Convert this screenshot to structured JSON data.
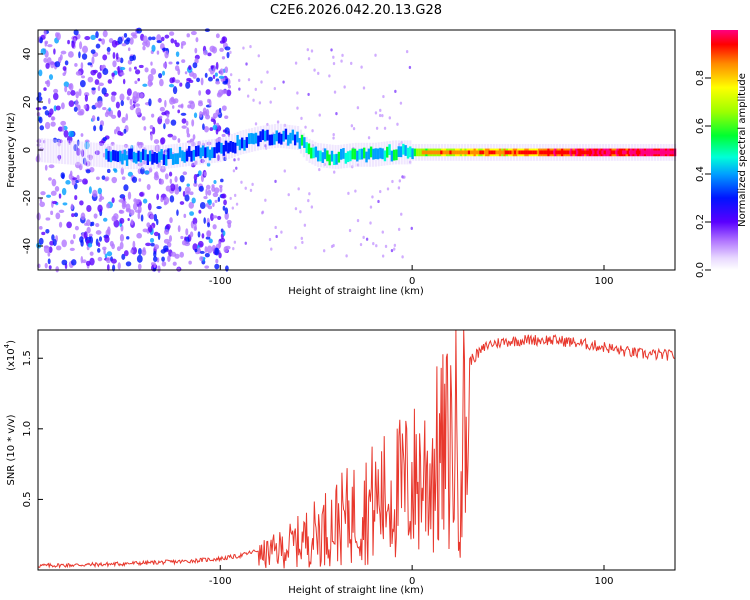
{
  "title": "C2E6.2026.042.20.13.G28",
  "chart_data": [
    {
      "type": "heatmap",
      "name": "spectrogram",
      "xlabel": "Height of straight line (km)",
      "ylabel": "Frequency (Hz)",
      "xlim": [
        -195,
        137
      ],
      "ylim": [
        -50,
        50
      ],
      "xticks": [
        -100,
        0,
        100
      ],
      "yticks": [
        -40,
        -20,
        0,
        20,
        40
      ],
      "xtick_labels": [
        "-100",
        "0",
        "100"
      ],
      "ytick_labels": [
        "-40",
        "-20",
        "0",
        "20",
        "40"
      ],
      "trace_freq": [
        [
          -195,
          0
        ],
        [
          -150,
          -3
        ],
        [
          -130,
          -3
        ],
        [
          -110,
          -1
        ],
        [
          -100,
          0
        ],
        [
          -90,
          3
        ],
        [
          -80,
          5
        ],
        [
          -70,
          6
        ],
        [
          -60,
          5
        ],
        [
          -55,
          0
        ],
        [
          -50,
          -2
        ],
        [
          -40,
          -3
        ],
        [
          -30,
          -2
        ],
        [
          -20,
          -2
        ],
        [
          -10,
          -1
        ],
        [
          0,
          -1
        ],
        [
          20,
          -1
        ],
        [
          60,
          -1
        ],
        [
          100,
          -1
        ],
        [
          137,
          -1
        ]
      ],
      "colorbar": {
        "label": "Normalized spectral amplitude",
        "range": [
          0,
          1
        ],
        "ticks": [
          0.0,
          0.2,
          0.4,
          0.6,
          0.8
        ],
        "tick_labels": [
          "0.0",
          "0.2",
          "0.4",
          "0.6",
          "0.8"
        ]
      }
    },
    {
      "type": "line",
      "name": "snr",
      "xlabel": "Height of straight line (km)",
      "ylabel": "SNR (10 * v/v)",
      "scale_label": "(x10",
      "scale_exponent": "4",
      "xlim": [
        -195,
        137
      ],
      "ylim": [
        0,
        1.7
      ],
      "xticks": [
        -100,
        0,
        100
      ],
      "yticks": [
        0.5,
        1.0,
        1.5
      ],
      "xtick_labels": [
        "-100",
        "0",
        "100"
      ],
      "ytick_labels": [
        "0.5",
        "1.0",
        "1.5"
      ],
      "color": "#e8382d",
      "envelope": [
        [
          -195,
          0.03
        ],
        [
          -160,
          0.04
        ],
        [
          -140,
          0.05
        ],
        [
          -120,
          0.06
        ],
        [
          -100,
          0.08
        ],
        [
          -90,
          0.1
        ],
        [
          -80,
          0.14
        ],
        [
          -70,
          0.2
        ],
        [
          -60,
          0.28
        ],
        [
          -50,
          0.38
        ],
        [
          -40,
          0.48
        ],
        [
          -30,
          0.58
        ],
        [
          -20,
          0.68
        ],
        [
          -10,
          0.78
        ],
        [
          0,
          0.88
        ],
        [
          10,
          1.02
        ],
        [
          20,
          1.25
        ],
        [
          30,
          1.48
        ],
        [
          40,
          1.6
        ],
        [
          50,
          1.62
        ],
        [
          60,
          1.63
        ],
        [
          70,
          1.63
        ],
        [
          80,
          1.62
        ],
        [
          90,
          1.6
        ],
        [
          100,
          1.58
        ],
        [
          110,
          1.55
        ],
        [
          120,
          1.53
        ],
        [
          137,
          1.52
        ]
      ]
    }
  ]
}
